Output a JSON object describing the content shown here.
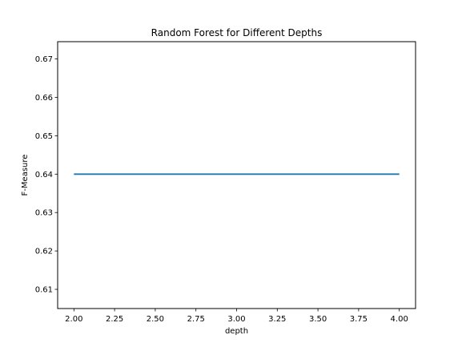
{
  "chart_data": {
    "type": "line",
    "title": "Random Forest for Different Depths",
    "xlabel": "depth",
    "ylabel": "F-Measure",
    "xlim": [
      1.9,
      4.1
    ],
    "ylim": [
      0.605,
      0.6745
    ],
    "x_ticks": [
      2.0,
      2.25,
      2.5,
      2.75,
      3.0,
      3.25,
      3.5,
      3.75,
      4.0
    ],
    "x_tick_labels": [
      "2.00",
      "2.25",
      "2.50",
      "2.75",
      "3.00",
      "3.25",
      "3.50",
      "3.75",
      "4.00"
    ],
    "y_ticks": [
      0.61,
      0.62,
      0.63,
      0.64,
      0.65,
      0.66,
      0.67
    ],
    "y_tick_labels": [
      "0.61",
      "0.62",
      "0.63",
      "0.64",
      "0.65",
      "0.66",
      "0.67"
    ],
    "grid": false,
    "series": [
      {
        "x": [
          2,
          3,
          4
        ],
        "y": [
          0.64,
          0.64,
          0.64
        ],
        "color": "#1f77b4"
      }
    ]
  }
}
